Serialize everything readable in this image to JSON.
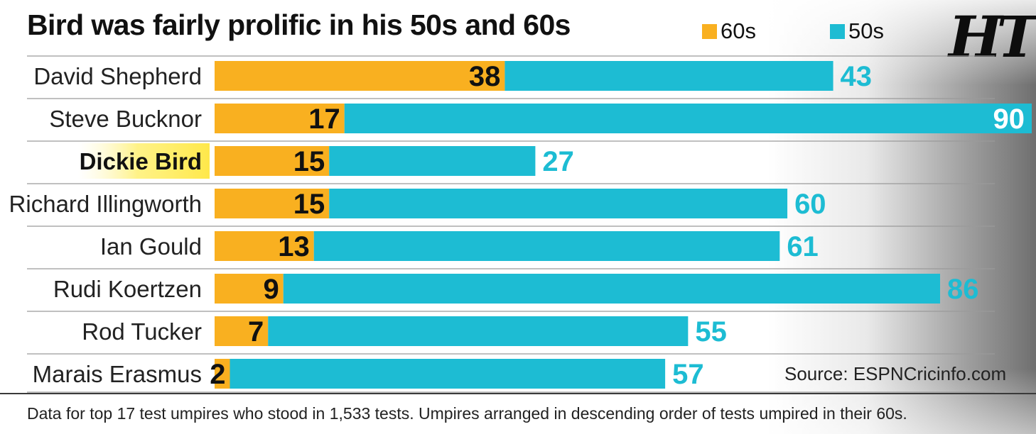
{
  "header": {
    "title": "Bird was fairly prolific in his 50s and 60s",
    "logo": "HT"
  },
  "legend": [
    {
      "label": "60s",
      "color": "#f9b020"
    },
    {
      "label": "50s",
      "color": "#1dbcd3"
    }
  ],
  "chart_data": {
    "type": "bar",
    "orientation": "horizontal",
    "stacked": true,
    "title": "Bird was fairly prolific in his 50s and 60s",
    "categories": [
      "David Shepherd",
      "Steve Bucknor",
      "Dickie Bird",
      "Richard Illingworth",
      "Ian Gould",
      "Rudi Koertzen",
      "Rod Tucker",
      "Marais Erasmus"
    ],
    "highlighted_category": "Dickie Bird",
    "series": [
      {
        "name": "60s",
        "color": "#f9b020",
        "values": [
          38,
          17,
          15,
          15,
          13,
          9,
          7,
          2
        ]
      },
      {
        "name": "50s",
        "color": "#1dbcd3",
        "values": [
          43,
          90,
          27,
          60,
          61,
          86,
          55,
          57
        ]
      }
    ],
    "xlim": [
      0,
      107
    ],
    "grid": false,
    "legend_position": "top"
  },
  "source": "Source: ESPNCricinfo.com",
  "footnote": "Data for top 17 test umpires who stood in 1,533 tests. Umpires arranged in descending order of tests umpired in their 60s."
}
